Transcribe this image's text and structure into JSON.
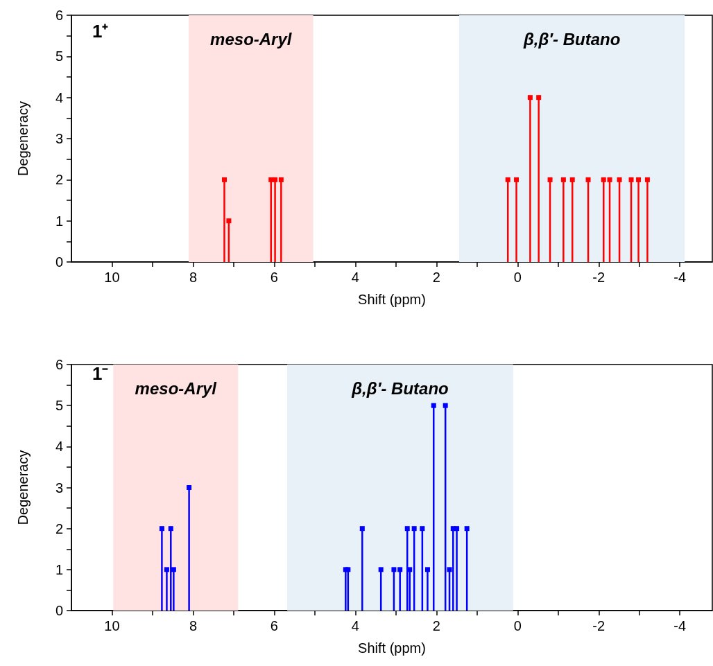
{
  "chart_data": [
    {
      "type": "lollipop",
      "xlabel": "Shift (ppm)",
      "ylabel": "Degeneracy",
      "marker": "square",
      "grid": false,
      "annotations": [
        "1⁺"
      ],
      "xlim": [
        11,
        -4.8
      ],
      "xticks": [
        10,
        {
          "value": 9,
          "label": null
        },
        8,
        {
          "value": 7,
          "label": null
        },
        6,
        {
          "value": 5,
          "label": null
        },
        4,
        {
          "value": 3,
          "label": null
        },
        2,
        {
          "value": 1,
          "label": null
        },
        0,
        {
          "value": -1,
          "label": null
        },
        -2,
        {
          "value": -3,
          "label": null
        },
        -4
      ],
      "ylim": [
        0,
        6
      ],
      "yticks": [
        0,
        {
          "value": 0.5,
          "label": null
        },
        1,
        {
          "value": 1.5,
          "label": null
        },
        2,
        {
          "value": 2.5,
          "label": null
        },
        3,
        {
          "value": 3.5,
          "label": null
        },
        4,
        {
          "value": 4.5,
          "label": null
        },
        5,
        {
          "value": 5.5,
          "label": null
        },
        6
      ],
      "bands": [
        {
          "axis": "x",
          "from": 8.11,
          "to": 5.04,
          "label": "meso-Aryl",
          "color": "#ffe3e3"
        },
        {
          "axis": "x",
          "from": 1.44,
          "to": -4.12,
          "label": "β,β′- Butano",
          "color": "#e8f0f8"
        }
      ],
      "series": [
        {
          "color": "#ff0000",
          "x": [
            7.23,
            7.12,
            6.08,
            5.98,
            5.83,
            0.24,
            0.03,
            -0.31,
            -0.52,
            -0.8,
            -1.13,
            -1.35,
            -1.74,
            -2.12,
            -2.27,
            -2.51,
            -2.8,
            -2.98,
            -3.2
          ],
          "values": [
            2,
            1,
            2,
            2,
            2,
            2,
            2,
            4,
            4,
            2,
            2,
            2,
            2,
            2,
            2,
            2,
            2,
            2,
            2
          ]
        }
      ]
    },
    {
      "type": "lollipop",
      "xlabel": "Shift (ppm)",
      "ylabel": "Degeneracy",
      "marker": "square",
      "grid": false,
      "annotations": [
        "1⁻"
      ],
      "xlim": [
        11,
        -4.8
      ],
      "xticks": [
        10,
        {
          "value": 9,
          "label": null
        },
        8,
        {
          "value": 7,
          "label": null
        },
        6,
        {
          "value": 5,
          "label": null
        },
        4,
        {
          "value": 3,
          "label": null
        },
        2,
        {
          "value": 1,
          "label": null
        },
        0,
        {
          "value": -1,
          "label": null
        },
        -2,
        {
          "value": -3,
          "label": null
        },
        -4
      ],
      "ylim": [
        0,
        6
      ],
      "yticks": [
        0,
        {
          "value": 0.5,
          "label": null
        },
        1,
        {
          "value": 1.5,
          "label": null
        },
        2,
        {
          "value": 2.5,
          "label": null
        },
        3,
        {
          "value": 3.5,
          "label": null
        },
        4,
        {
          "value": 4.5,
          "label": null
        },
        5,
        {
          "value": 5.5,
          "label": null
        },
        6
      ],
      "bands": [
        {
          "axis": "x",
          "from": 9.97,
          "to": 6.89,
          "label": "meso-Aryl",
          "color": "#ffe3e3"
        },
        {
          "axis": "x",
          "from": 5.68,
          "to": 0.11,
          "label": "β,β′- Butano",
          "color": "#e8f0f8"
        }
      ],
      "series": [
        {
          "color": "#0000ff",
          "x": [
            8.77,
            8.65,
            8.55,
            8.48,
            8.1,
            4.24,
            4.18,
            3.83,
            3.37,
            3.05,
            2.9,
            2.72,
            2.66,
            2.55,
            2.35,
            2.22,
            2.07,
            1.78,
            1.68,
            1.59,
            1.5,
            1.25
          ],
          "values": [
            2,
            1,
            2,
            1,
            3,
            1,
            1,
            2,
            1,
            1,
            1,
            2,
            1,
            2,
            2,
            1,
            5,
            5,
            1,
            2,
            2,
            2
          ]
        }
      ]
    }
  ]
}
